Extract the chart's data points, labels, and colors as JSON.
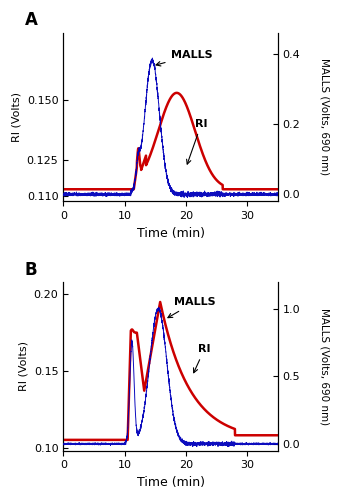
{
  "panel_A": {
    "label": "A",
    "ri_ylim": [
      0.108,
      0.178
    ],
    "ri_yticks": [
      0.11,
      0.125,
      0.15
    ],
    "malls_ylim": [
      -0.02,
      0.46
    ],
    "malls_yticks": [
      0.0,
      0.2,
      0.4
    ],
    "xlim": [
      0,
      35
    ],
    "xticks": [
      0,
      10,
      20,
      30
    ],
    "xlabel": "Time (min)",
    "ylabel_left": "RI (Volts)",
    "ylabel_right": "MALLS (Volts, 690 nm)",
    "ri_color": "#cc0000",
    "malls_color": "#0000bb",
    "ann_malls": "MALLS",
    "ann_ri": "RI"
  },
  "panel_B": {
    "label": "B",
    "ri_ylim": [
      0.098,
      0.208
    ],
    "ri_yticks": [
      0.1,
      0.15,
      0.2
    ],
    "malls_ylim": [
      -0.05,
      1.2
    ],
    "malls_yticks": [
      0.0,
      0.5,
      1.0
    ],
    "xlim": [
      0,
      35
    ],
    "xticks": [
      0,
      10,
      20,
      30
    ],
    "xlabel": "Time (min)",
    "ylabel_left": "RI (Volts)",
    "ylabel_right": "MALLS (Volts, 690 nm)",
    "ri_color": "#cc0000",
    "malls_color": "#0000bb",
    "ann_malls": "MALLS",
    "ann_ri": "RI"
  }
}
